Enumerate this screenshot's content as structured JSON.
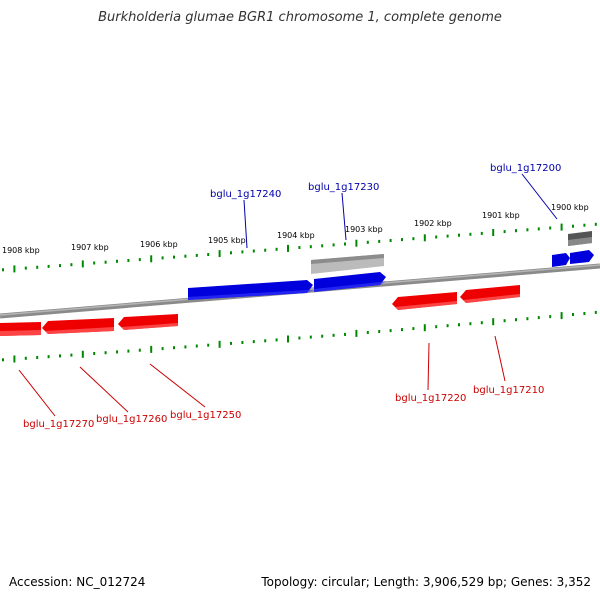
{
  "title": "Burkholderia glumae BGR1 chromosome 1, complete genome",
  "footer": {
    "accession": "Accession: NC_012724",
    "topology": "Topology: circular; Length: 3,906,529 bp; Genes: 3,352"
  },
  "ruler": [
    {
      "label": "1908 kbp"
    },
    {
      "label": "1907 kbp"
    },
    {
      "label": "1906 kbp"
    },
    {
      "label": "1905 kbp"
    },
    {
      "label": "1904 kbp"
    },
    {
      "label": "1903 kbp"
    },
    {
      "label": "1902 kbp"
    },
    {
      "label": "1901 kbp"
    },
    {
      "label": "1900 kbp"
    }
  ],
  "genes_top": [
    {
      "label": "bglu_1g17240"
    },
    {
      "label": "bglu_1g17230"
    },
    {
      "label": "bglu_1g17200"
    }
  ],
  "genes_bottom": [
    {
      "label": "bglu_1g17270"
    },
    {
      "label": "bglu_1g17260"
    },
    {
      "label": "bglu_1g17250"
    },
    {
      "label": "bglu_1g17220"
    },
    {
      "label": "bglu_1g17210"
    }
  ],
  "colors": {
    "forward": "#0000dd",
    "reverse": "#ee0000",
    "pseudo": "#bbbbbb",
    "ticks": "#008800",
    "backbone": "#888888",
    "label_top": "#0000aa",
    "label_bottom": "#cc0000"
  }
}
